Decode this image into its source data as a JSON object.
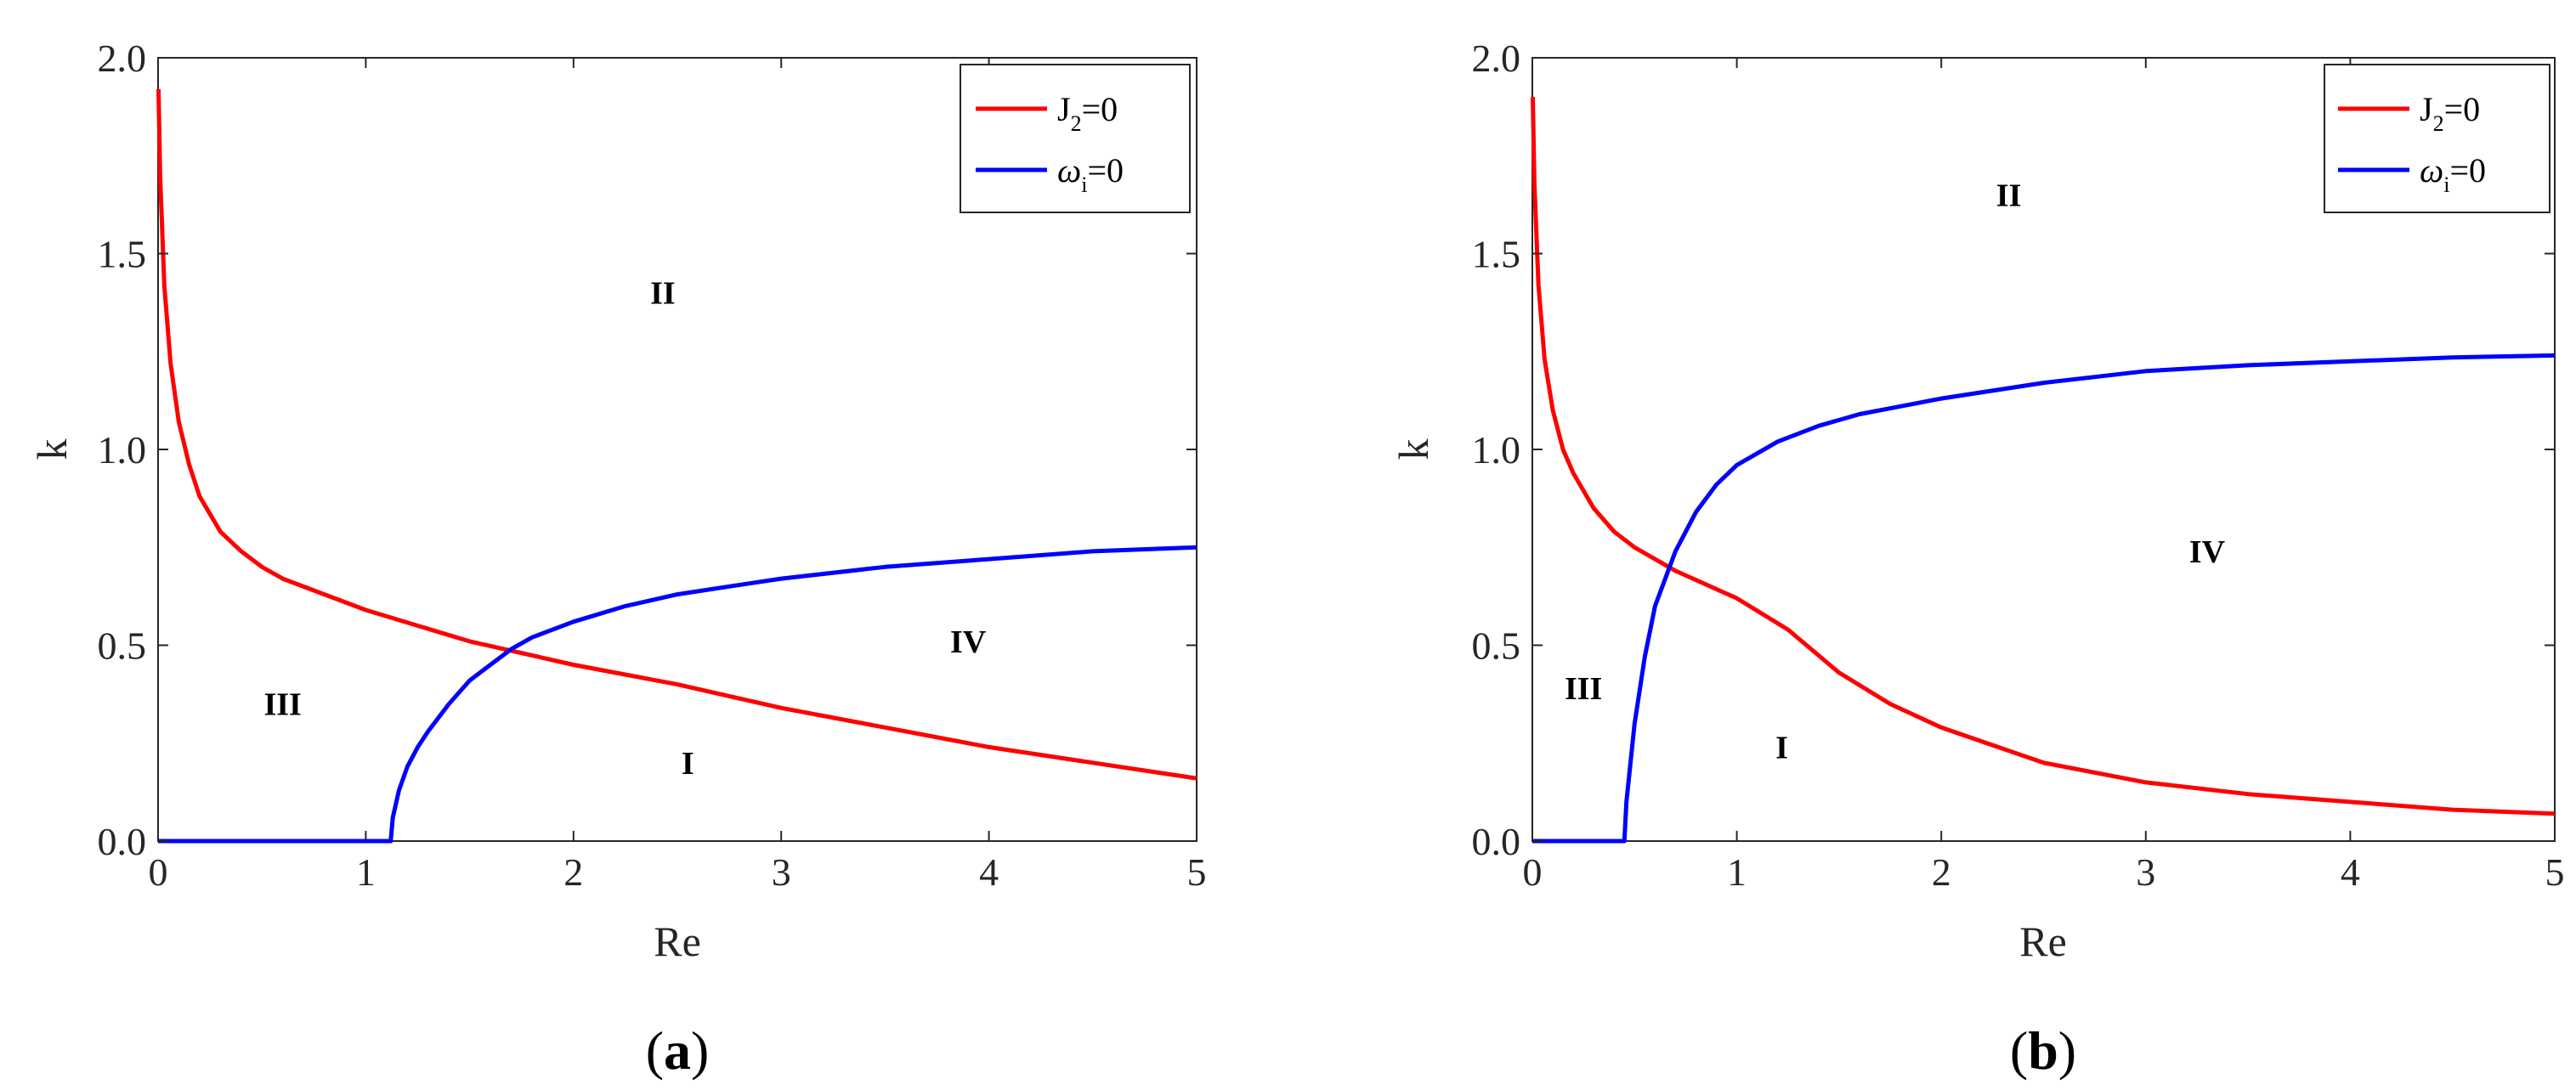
{
  "chart_data": [
    {
      "type": "line",
      "caption": {
        "open": "(",
        "letter": "a",
        "close": ")"
      },
      "xlabel": "Re",
      "ylabel": "k",
      "xlim": [
        0,
        5
      ],
      "ylim": [
        0,
        2
      ],
      "xticks": [
        0,
        1,
        2,
        3,
        4,
        5
      ],
      "yticks": [
        0.0,
        0.5,
        1.0,
        1.5,
        2.0
      ],
      "xtick_labels": [
        "0",
        "1",
        "2",
        "3",
        "4",
        "5"
      ],
      "ytick_labels": [
        "0.0",
        "0.5",
        "1.0",
        "1.5",
        "2.0"
      ],
      "grid": false,
      "legend_position": "top-right",
      "series": [
        {
          "legend": {
            "base": "J",
            "sub": "2",
            "rest": "=0"
          },
          "color": "#ff0000",
          "x": [
            0.002,
            0.01,
            0.03,
            0.06,
            0.1,
            0.15,
            0.2,
            0.3,
            0.4,
            0.5,
            0.6,
            0.8,
            1.0,
            1.25,
            1.5,
            1.75,
            2.0,
            2.5,
            3.0,
            3.5,
            4.0,
            4.5,
            5.0
          ],
          "y": [
            1.92,
            1.7,
            1.42,
            1.22,
            1.07,
            0.96,
            0.88,
            0.79,
            0.74,
            0.7,
            0.67,
            0.63,
            0.59,
            0.55,
            0.51,
            0.48,
            0.45,
            0.4,
            0.34,
            0.29,
            0.24,
            0.2,
            0.16
          ]
        },
        {
          "legend": {
            "base": "ω",
            "sub": "i",
            "rest": "=0"
          },
          "color": "#0000ff",
          "x": [
            0,
            1.12,
            1.13,
            1.16,
            1.2,
            1.25,
            1.3,
            1.4,
            1.5,
            1.6,
            1.7,
            1.8,
            2.0,
            2.25,
            2.5,
            2.75,
            3.0,
            3.5,
            4.0,
            4.5,
            5.0
          ],
          "y": [
            0,
            0,
            0.06,
            0.13,
            0.19,
            0.24,
            0.28,
            0.35,
            0.41,
            0.45,
            0.49,
            0.52,
            0.56,
            0.6,
            0.63,
            0.65,
            0.67,
            0.7,
            0.72,
            0.74,
            0.75
          ]
        }
      ],
      "annotations": [
        {
          "text": "II",
          "x": 2.43,
          "y": 1.4
        },
        {
          "text": "III",
          "x": 0.6,
          "y": 0.35
        },
        {
          "text": "IV",
          "x": 3.9,
          "y": 0.51
        },
        {
          "text": "I",
          "x": 2.55,
          "y": 0.2
        }
      ]
    },
    {
      "type": "line",
      "caption": {
        "open": "(",
        "letter": "b",
        "close": ")"
      },
      "xlabel": "Re",
      "ylabel": "k",
      "xlim": [
        0,
        5
      ],
      "ylim": [
        0,
        2
      ],
      "xticks": [
        0,
        1,
        2,
        3,
        4,
        5
      ],
      "yticks": [
        0.0,
        0.5,
        1.0,
        1.5,
        2.0
      ],
      "xtick_labels": [
        "0",
        "1",
        "2",
        "3",
        "4",
        "5"
      ],
      "ytick_labels": [
        "0.0",
        "0.5",
        "1.0",
        "1.5",
        "2.0"
      ],
      "grid": false,
      "legend_position": "top-right",
      "series": [
        {
          "legend": {
            "base": "J",
            "sub": "2",
            "rest": "=0"
          },
          "color": "#ff0000",
          "x": [
            0.002,
            0.01,
            0.03,
            0.06,
            0.1,
            0.15,
            0.2,
            0.3,
            0.4,
            0.5,
            0.7,
            1.0,
            1.25,
            1.5,
            1.75,
            2.0,
            2.5,
            3.0,
            3.5,
            4.0,
            4.5,
            5.0
          ],
          "y": [
            1.9,
            1.68,
            1.42,
            1.23,
            1.1,
            1.0,
            0.94,
            0.85,
            0.79,
            0.75,
            0.69,
            0.62,
            0.54,
            0.43,
            0.35,
            0.29,
            0.2,
            0.15,
            0.12,
            0.1,
            0.08,
            0.07
          ]
        },
        {
          "legend": {
            "base": "ω",
            "sub": "i",
            "rest": "=0"
          },
          "color": "#0000ff",
          "x": [
            0,
            0.45,
            0.46,
            0.48,
            0.5,
            0.55,
            0.6,
            0.7,
            0.8,
            0.9,
            1.0,
            1.2,
            1.4,
            1.6,
            1.8,
            2.0,
            2.5,
            3.0,
            3.5,
            4.0,
            4.5,
            5.0
          ],
          "y": [
            0,
            0,
            0.1,
            0.2,
            0.3,
            0.47,
            0.6,
            0.74,
            0.84,
            0.91,
            0.96,
            1.02,
            1.06,
            1.09,
            1.11,
            1.13,
            1.17,
            1.2,
            1.215,
            1.225,
            1.235,
            1.24
          ]
        }
      ],
      "annotations": [
        {
          "text": "II",
          "x": 2.33,
          "y": 1.65
        },
        {
          "text": "III",
          "x": 0.25,
          "y": 0.39
        },
        {
          "text": "IV",
          "x": 3.3,
          "y": 0.74
        },
        {
          "text": "I",
          "x": 1.22,
          "y": 0.24
        }
      ]
    }
  ]
}
